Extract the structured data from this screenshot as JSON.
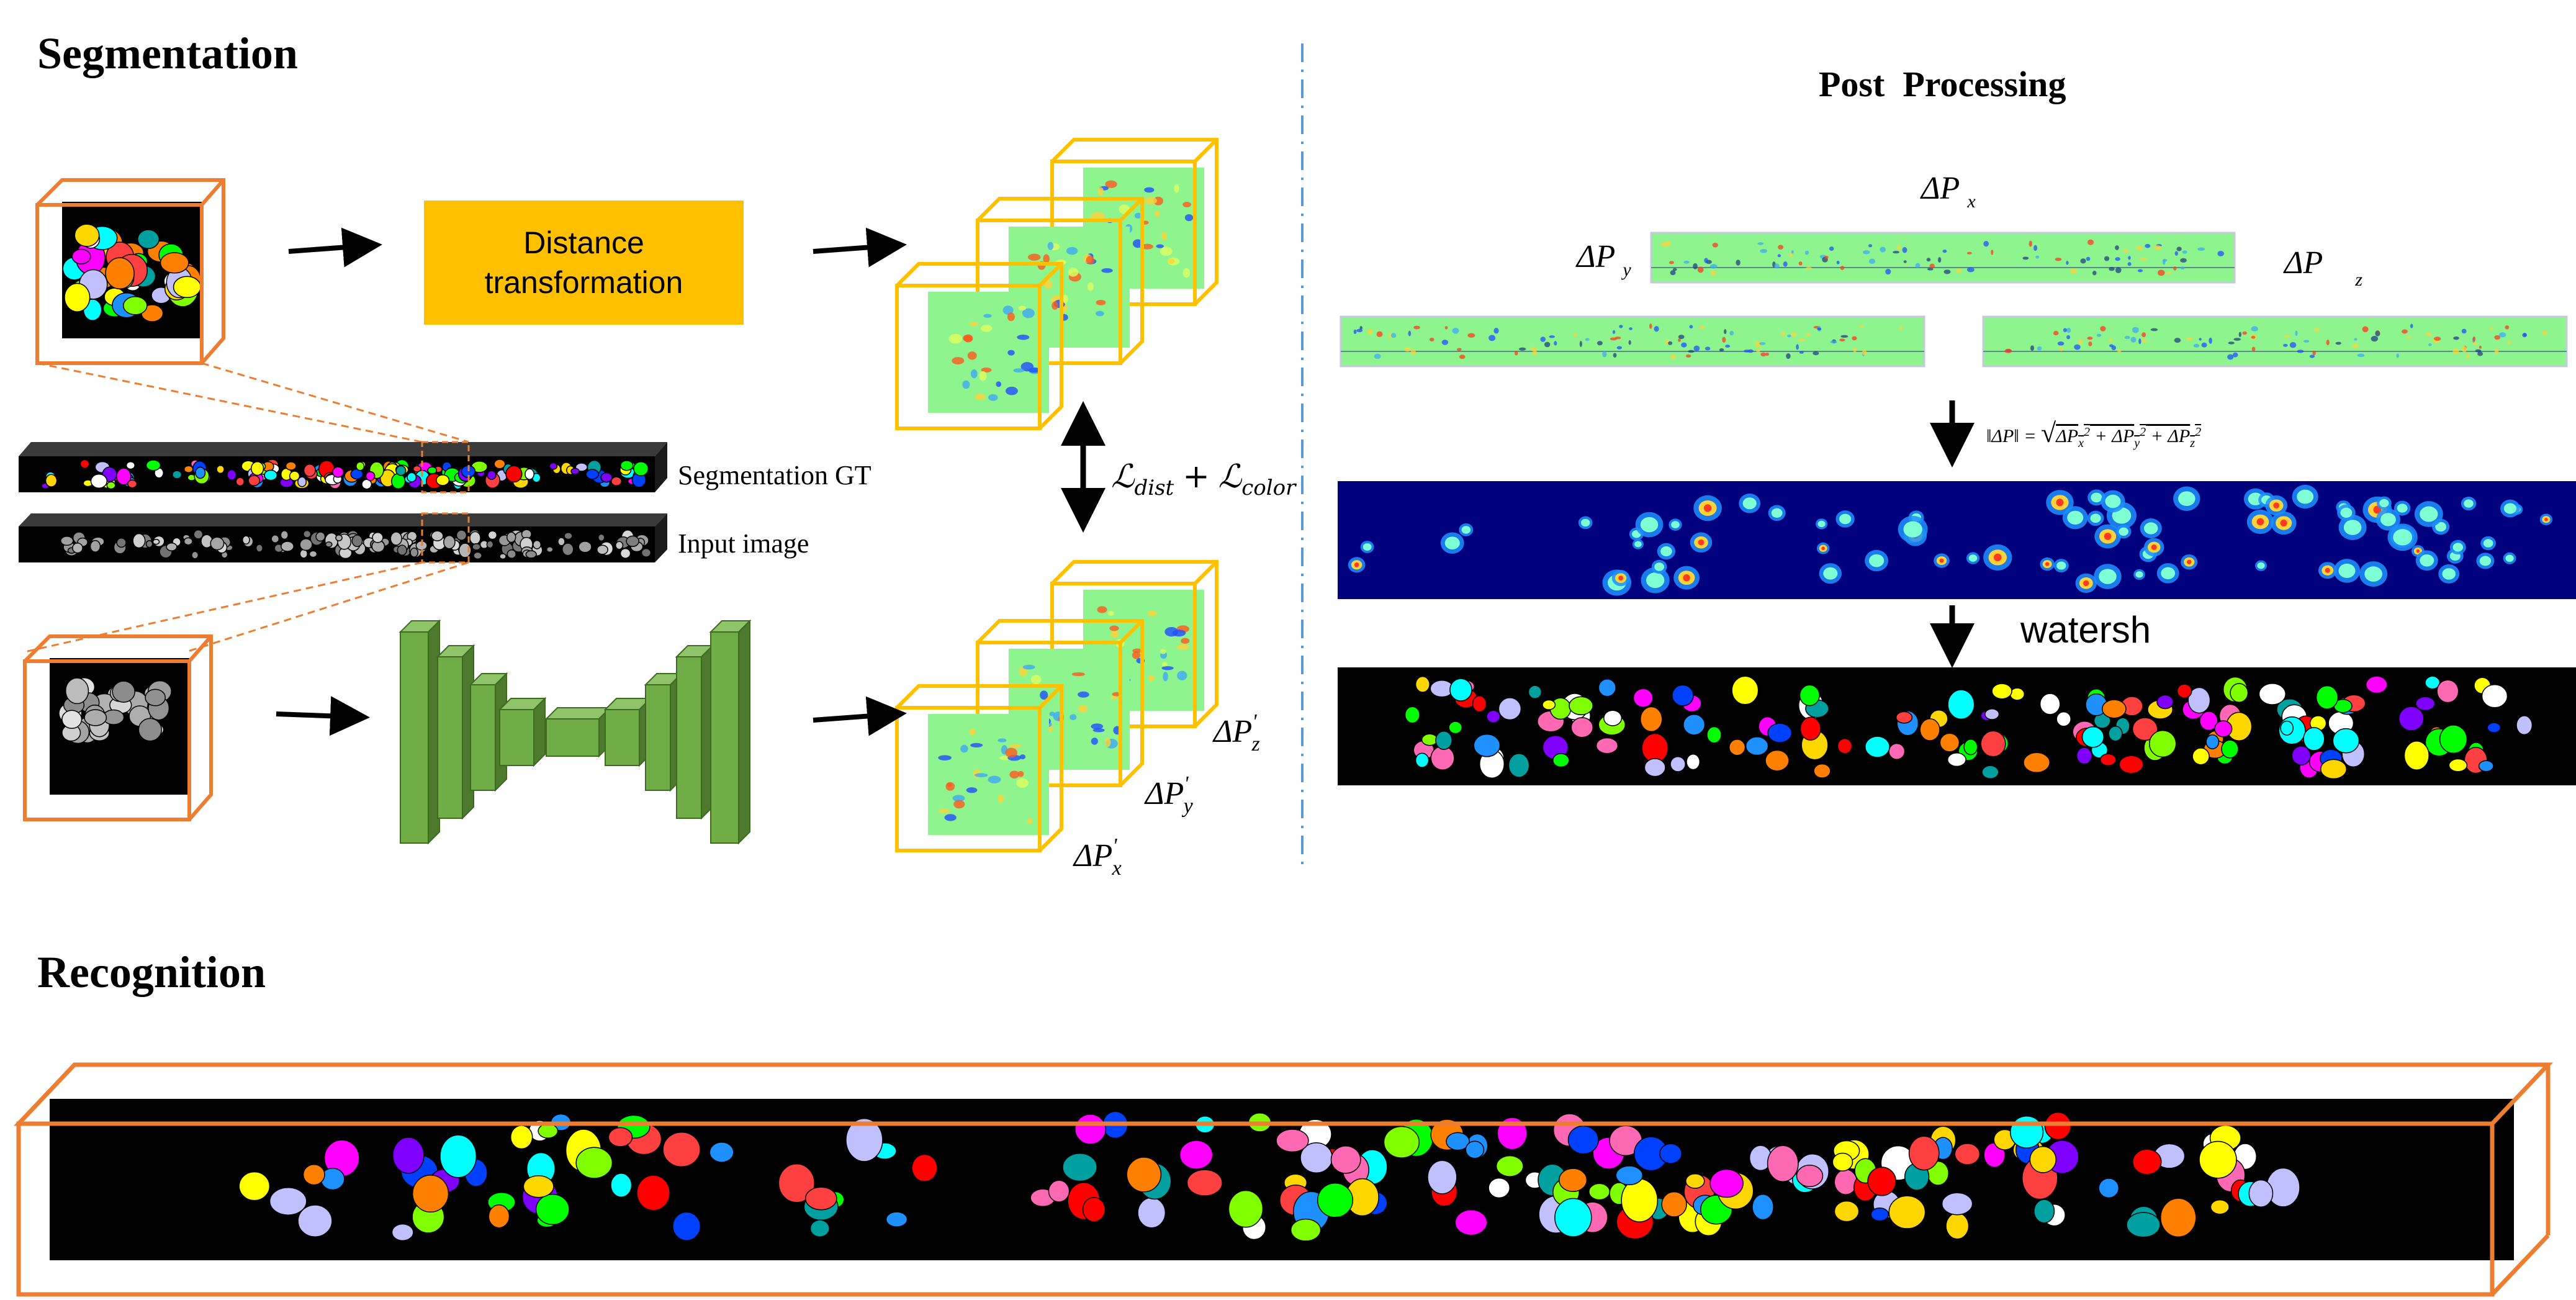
{
  "sections": {
    "segmentation": "Segmentation",
    "post_processing": "Post  Processing",
    "recognition": "Recognition"
  },
  "labels": {
    "distance_transformation_line1": "Distance",
    "distance_transformation_line2": "transformation",
    "segmentation_gt": "Segmentation GT",
    "input_image": "Input image",
    "loss": "ℒdist + ℒcolor",
    "loss_main_1": "ℒ",
    "loss_sub_1": "dist",
    "loss_plus": "+",
    "loss_main_2": "ℒ",
    "loss_sub_2": "color",
    "pred_x": "ΔP'x",
    "pred_y": "ΔP'y",
    "pred_z": "ΔP'z",
    "dpx": "ΔP x",
    "dpy": "ΔP y",
    "dpz": "ΔP  z",
    "magnitude_formula": "‖ΔP‖ = √(ΔPx² + ΔPy² + ΔPz²)",
    "watershed": "watersh"
  },
  "colors": {
    "orange_frame": "#ed7d31",
    "yellow_frame": "#ffc000",
    "green_field": "#8ef58e",
    "unet_green": "#70ad47",
    "unet_dark": "#4e7a2e",
    "heatmap_bg": "#00007f",
    "divider": "#5b9bd5"
  }
}
